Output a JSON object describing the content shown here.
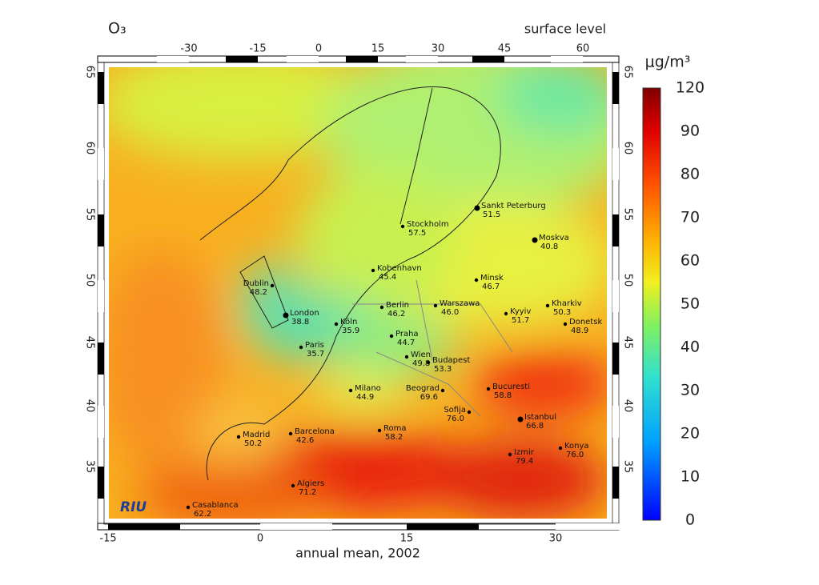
{
  "header": {
    "title": "O₃",
    "subtitle": "surface level",
    "unit": "μg/m³",
    "caption": "annual mean, 2002",
    "logo": "RIU"
  },
  "colorbar": {
    "ticks": [
      120,
      90,
      80,
      70,
      60,
      50,
      40,
      30,
      20,
      10,
      0
    ]
  },
  "axes": {
    "top": [
      -30,
      -15,
      0,
      15,
      30,
      45,
      60
    ],
    "bottom": [
      -15,
      0,
      15,
      30
    ],
    "left": [
      65,
      60,
      55,
      50,
      45,
      40,
      35
    ],
    "right": [
      65,
      60,
      55,
      50,
      45,
      40,
      35
    ]
  },
  "cities": [
    {
      "name": "Sankt Peterburg",
      "value": "51.5"
    },
    {
      "name": "Moskva",
      "value": "40.8"
    },
    {
      "name": "Stockholm",
      "value": "57.5"
    },
    {
      "name": "Kobenhavn",
      "value": "45.4"
    },
    {
      "name": "Dublin",
      "value": "48.2"
    },
    {
      "name": "London",
      "value": "38.8"
    },
    {
      "name": "Berlin",
      "value": "46.2"
    },
    {
      "name": "Warszawa",
      "value": "46.0"
    },
    {
      "name": "Minsk",
      "value": "46.7"
    },
    {
      "name": "Kyyiv",
      "value": "51.7"
    },
    {
      "name": "Kharkiv",
      "value": "50.3"
    },
    {
      "name": "Donetsk",
      "value": "48.9"
    },
    {
      "name": "Köln",
      "value": "35.9"
    },
    {
      "name": "Praha",
      "value": "44.7"
    },
    {
      "name": "Paris",
      "value": "35.7"
    },
    {
      "name": "Wien",
      "value": "49.8"
    },
    {
      "name": "Budapest",
      "value": "53.3"
    },
    {
      "name": "Milano",
      "value": "44.9"
    },
    {
      "name": "Beograd",
      "value": "69.6"
    },
    {
      "name": "Bucuresti",
      "value": "58.8"
    },
    {
      "name": "Sofija",
      "value": "76.0"
    },
    {
      "name": "Istanbul",
      "value": "66.8"
    },
    {
      "name": "Roma",
      "value": "58.2"
    },
    {
      "name": "Barcelona",
      "value": "42.6"
    },
    {
      "name": "Madrid",
      "value": "50.2"
    },
    {
      "name": "Izmir",
      "value": "79.4"
    },
    {
      "name": "Konya",
      "value": "76.0"
    },
    {
      "name": "Algiers",
      "value": "71.2"
    },
    {
      "name": "Casablanca",
      "value": "62.2"
    }
  ]
}
